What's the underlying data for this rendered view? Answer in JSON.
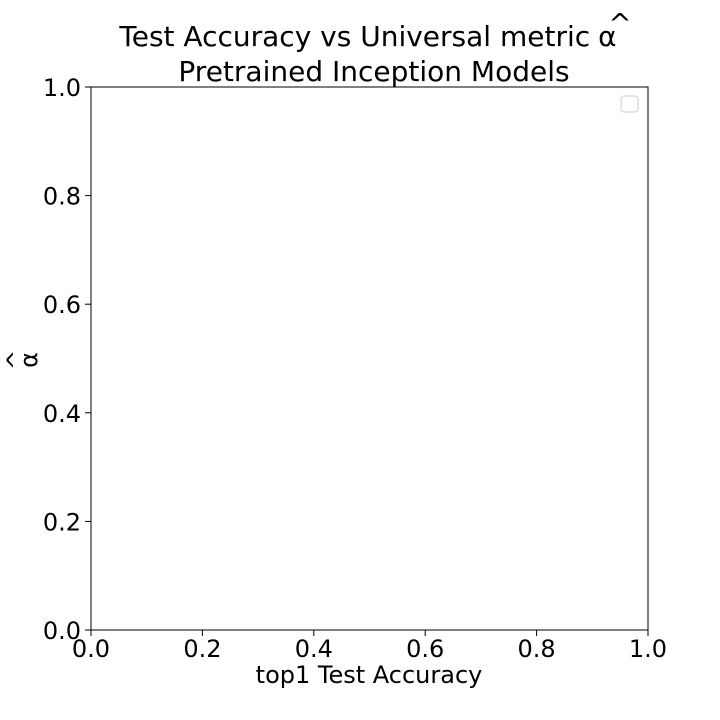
{
  "chart_data": {
    "type": "scatter",
    "title_line1": "Test Accuracy vs Universal metric",
    "title_symbol": "α",
    "title_symbol_accent": "^",
    "title_line2": "Pretrained Inception Models",
    "xlabel": "top1 Test Accuracy",
    "ylabel_symbol": "α",
    "ylabel_accent": "^",
    "xlim": [
      0.0,
      1.0
    ],
    "ylim": [
      0.0,
      1.0
    ],
    "x_ticks": [
      0.0,
      0.2,
      0.4,
      0.6,
      0.8,
      1.0
    ],
    "y_ticks": [
      0.0,
      0.2,
      0.4,
      0.6,
      0.8,
      1.0
    ],
    "x_tick_labels": [
      "0.0",
      "0.2",
      "0.4",
      "0.6",
      "0.8",
      "1.0"
    ],
    "y_tick_labels": [
      "0.0",
      "0.2",
      "0.4",
      "0.6",
      "0.8",
      "1.0"
    ],
    "series": [],
    "grid": false,
    "legend": {
      "position": "top-right",
      "entries": []
    }
  }
}
